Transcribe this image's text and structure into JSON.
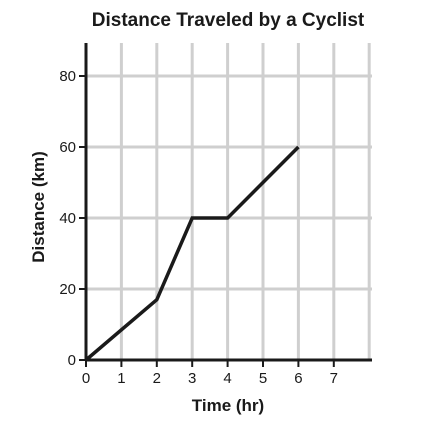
{
  "chart_data": {
    "type": "line",
    "title": "Distance Traveled by a Cyclist",
    "xlabel": "Time (hr)",
    "ylabel": "Distance (km)",
    "xlim": [
      0,
      8
    ],
    "ylim": [
      0,
      90
    ],
    "x_ticks": [
      0,
      1,
      2,
      3,
      4,
      5,
      6,
      7
    ],
    "y_ticks": [
      0,
      20,
      40,
      60,
      80
    ],
    "x_tick_labels": [
      "0",
      "1",
      "2",
      "3",
      "4",
      "5",
      "6",
      "7"
    ],
    "y_tick_labels": [
      "0",
      "20",
      "40",
      "60",
      "80"
    ],
    "grid": true,
    "series": [
      {
        "x": [
          0,
          2,
          3,
          4,
          6
        ],
        "y": [
          0,
          17,
          40,
          40,
          60
        ]
      }
    ],
    "colors": {
      "grid": "#cfcfcf",
      "axis": "#1a1a1a",
      "line": "#1a1a1a"
    }
  }
}
